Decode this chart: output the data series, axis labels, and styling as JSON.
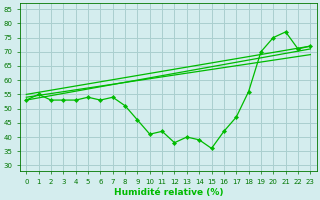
{
  "xlabel": "Humidité relative (%)",
  "xlim": [
    -0.5,
    23.5
  ],
  "ylim": [
    28,
    87
  ],
  "yticks": [
    30,
    35,
    40,
    45,
    50,
    55,
    60,
    65,
    70,
    75,
    80,
    85
  ],
  "xticks": [
    0,
    1,
    2,
    3,
    4,
    5,
    6,
    7,
    8,
    9,
    10,
    11,
    12,
    13,
    14,
    15,
    16,
    17,
    18,
    19,
    20,
    21,
    22,
    23
  ],
  "bg_color": "#d4edee",
  "grid_color": "#aacfcf",
  "line_color": "#00bb00",
  "main_curve": [
    53,
    55,
    53,
    53,
    53,
    54,
    53,
    54,
    51,
    46,
    41,
    42,
    38,
    40,
    39,
    36,
    42,
    47,
    56,
    70,
    75,
    77,
    71,
    72
  ],
  "trend_lines": [
    [
      [
        0,
        23
      ],
      [
        53,
        71
      ]
    ],
    [
      [
        0,
        23
      ],
      [
        54,
        69
      ]
    ],
    [
      [
        0,
        23
      ],
      [
        55,
        72
      ]
    ]
  ]
}
